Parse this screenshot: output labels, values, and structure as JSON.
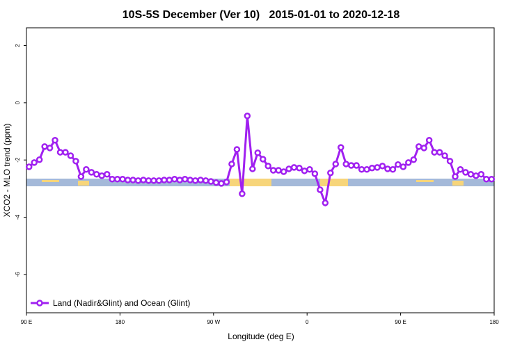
{
  "chart_data": {
    "type": "line",
    "title": "10S-5S December (Ver 10)   2015-01-01 to 2020-12-18",
    "x_label": "Longitude (deg E)",
    "y_label": "XCO2 - MLO trend (ppm)",
    "x": [
      92.5,
      97.5,
      102.5,
      107.5,
      112.5,
      117.5,
      122.5,
      127.5,
      132.5,
      137.5,
      142.5,
      147.5,
      152.5,
      157.5,
      162.5,
      167.5,
      172.5,
      177.5,
      182.5,
      187.5,
      192.5,
      197.5,
      202.5,
      207.5,
      212.5,
      217.5,
      222.5,
      227.5,
      232.5,
      237.5,
      242.5,
      247.5,
      252.5,
      257.5,
      262.5,
      267.5,
      272.5,
      277.5,
      282.5,
      287.5,
      292.5,
      297.5,
      302.5,
      307.5,
      312.5,
      317.5,
      322.5,
      327.5,
      332.5,
      337.5,
      342.5,
      347.5,
      352.5,
      357.5,
      362.5,
      367.5,
      372.5,
      377.5,
      382.5,
      387.5,
      392.5,
      397.5,
      402.5,
      407.5,
      412.5,
      417.5,
      422.5,
      427.5,
      432.5,
      437.5,
      442.5,
      447.5,
      452.5,
      457.5,
      462.5,
      467.5,
      472.5,
      477.5,
      482.5,
      487.5,
      492.5,
      497.5,
      502.5,
      507.5,
      512.5,
      517.5,
      522.5,
      527.5,
      532.5,
      537.5
    ],
    "series": [
      {
        "name": "Land (Nadir&Glint) and Ocean (Glint)",
        "color": "#a020f0",
        "values": [
          -2.24,
          -2.09,
          -1.99,
          -1.53,
          -1.58,
          -1.31,
          -1.73,
          -1.73,
          -1.85,
          -2.04,
          -2.58,
          -2.33,
          -2.43,
          -2.5,
          -2.55,
          -2.5,
          -2.67,
          -2.67,
          -2.67,
          -2.7,
          -2.7,
          -2.72,
          -2.7,
          -2.72,
          -2.72,
          -2.72,
          -2.7,
          -2.7,
          -2.67,
          -2.7,
          -2.67,
          -2.7,
          -2.72,
          -2.7,
          -2.72,
          -2.75,
          -2.79,
          -2.82,
          -2.77,
          -2.14,
          -1.63,
          -3.18,
          -0.46,
          -2.31,
          -1.75,
          -1.97,
          -2.21,
          -2.36,
          -2.36,
          -2.41,
          -2.31,
          -2.26,
          -2.28,
          -2.38,
          -2.33,
          -2.48,
          -3.04,
          -3.5,
          -2.45,
          -2.14,
          -1.56,
          -2.14,
          -2.19,
          -2.19,
          -2.33,
          -2.33,
          -2.28,
          -2.26,
          -2.21,
          -2.31,
          -2.33,
          -2.16,
          -2.24,
          -2.09,
          -1.99,
          -1.53,
          -1.58,
          -1.31,
          -1.73,
          -1.73,
          -1.85,
          -2.04,
          -2.58,
          -2.33,
          -2.43,
          -2.5,
          -2.55,
          -2.5,
          -2.67,
          -2.67
        ]
      }
    ],
    "xlim": [
      90,
      540
    ],
    "xticks": [
      {
        "value": 90,
        "label": "90 E"
      },
      180,
      {
        "value": 270,
        "label": "90 W"
      },
      {
        "value": 360,
        "label": "0"
      },
      {
        "value": 450,
        "label": "90 E"
      },
      {
        "value": 540,
        "label": "180"
      }
    ],
    "ylim": [
      -7.34,
      2.62
    ],
    "yticks": [
      -6,
      -4,
      -2,
      0,
      2
    ],
    "legend": "bottom-left"
  }
}
